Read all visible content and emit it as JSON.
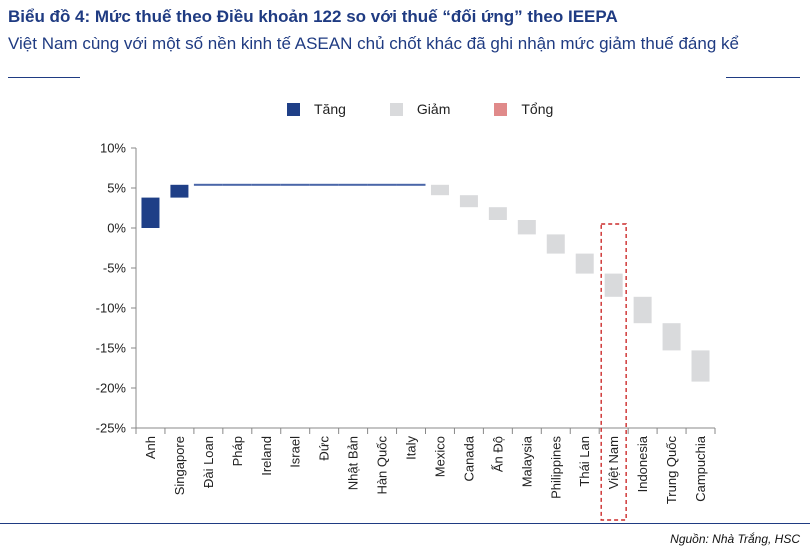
{
  "header": {
    "title": "Biểu đồ 4: Mức thuế theo Điều khoản 122 so với thuế “đối ứng” theo IEEPA",
    "subtitle": "Việt Nam cùng với một số nền kinh tế ASEAN chủ chốt khác đã ghi nhận mức giảm thuế đáng kể"
  },
  "footer": {
    "source": "Nguồn: Nhà Trắng, HSC"
  },
  "colors": {
    "accent": "#1f3b82",
    "increase": "#1f3f87",
    "decrease": "#d9dadc",
    "total": "#e08a8a",
    "highlight": "#cc2b2b",
    "axis": "#888888"
  },
  "chart_data": {
    "type": "bar",
    "subtype": "waterfall",
    "title": "",
    "xlabel": "",
    "ylabel": "",
    "ylim": [
      -25,
      10
    ],
    "yticks": [
      10,
      5,
      0,
      -5,
      -10,
      -15,
      -20,
      -25
    ],
    "ytick_labels": [
      "10%",
      "5%",
      "0%",
      "-5%",
      "-10%",
      "-15%",
      "-20%",
      "-25%"
    ],
    "legend": {
      "position": "top-center",
      "entries": [
        {
          "name": "Tăng",
          "color": "#1f3f87"
        },
        {
          "name": "Giảm",
          "color": "#d9dadc"
        },
        {
          "name": "Tổng",
          "color": "#e08a8a"
        }
      ]
    },
    "categories": [
      "Anh",
      "Singapore",
      "Đài Loan",
      "Pháp",
      "Ireland",
      "Israel",
      "Đức",
      "Nhật Bản",
      "Hàn Quốc",
      "Italy",
      "Mexico",
      "Canada",
      "Ấn Độ",
      "Malaysia",
      "Philippines",
      "Thái Lan",
      "Việt Nam",
      "Indonesia",
      "Trung Quốc",
      "Campuchia"
    ],
    "values": [
      3.8,
      1.6,
      0,
      0,
      0,
      0,
      0,
      0,
      0,
      0,
      -1.3,
      -1.5,
      -1.6,
      -1.8,
      -2.4,
      -2.5,
      -2.9,
      -3.3,
      -3.4,
      -3.9
    ],
    "cumulative": [
      3.8,
      5.4,
      5.4,
      5.4,
      5.4,
      5.4,
      5.4,
      5.4,
      5.4,
      5.4,
      4.1,
      2.6,
      1.0,
      -0.8,
      -3.2,
      -5.7,
      -8.6,
      -11.9,
      -15.3,
      -19.2
    ],
    "highlighted_category": "Việt Nam",
    "grid": false
  }
}
